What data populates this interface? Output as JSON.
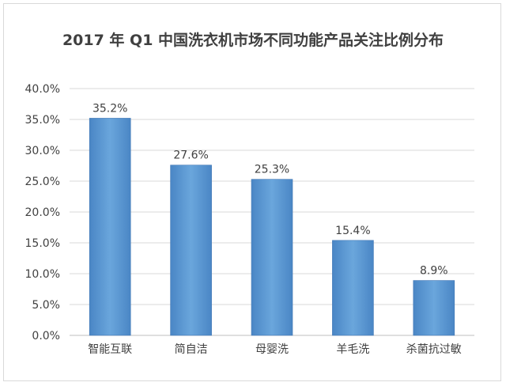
{
  "chart_data": {
    "type": "bar",
    "title": "2017 年 Q1 中国洗衣机市场不同功能产品关注比例分布",
    "xlabel": "",
    "ylabel": "",
    "categories": [
      "智能互联",
      "简自洁",
      "母婴洗",
      "羊毛洗",
      "杀菌抗过敏"
    ],
    "values": [
      35.2,
      27.6,
      25.3,
      15.4,
      8.9
    ],
    "value_labels": [
      "35.2%",
      "27.6%",
      "25.3%",
      "15.4%",
      "8.9%"
    ],
    "ylim": [
      0,
      40
    ],
    "yticks": [
      0,
      5,
      10,
      15,
      20,
      25,
      30,
      35,
      40
    ],
    "ytick_labels": [
      "0.0%",
      "5.0%",
      "10.0%",
      "15.0%",
      "20.0%",
      "25.0%",
      "30.0%",
      "35.0%",
      "40.0%"
    ],
    "grid": true,
    "legend": "none",
    "bar_color": "#5b9bd5"
  }
}
